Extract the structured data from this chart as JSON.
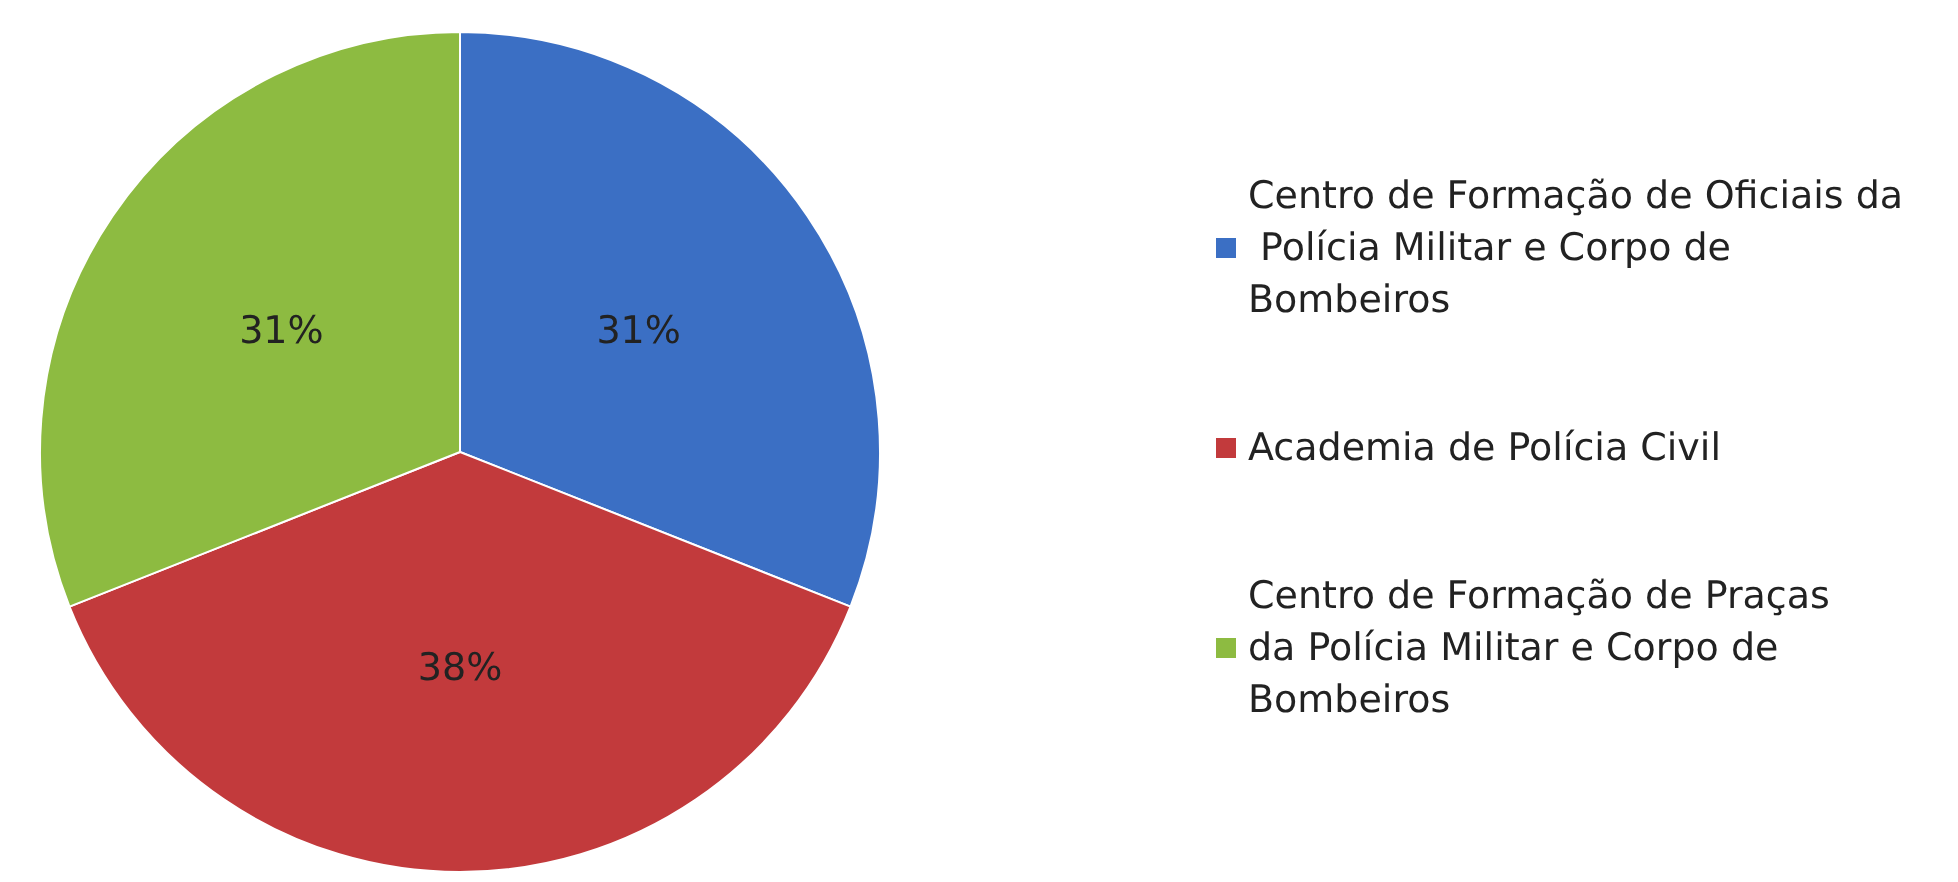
{
  "chart_data": {
    "type": "pie",
    "categories": [
      "Centro de Formação de Oficiais da Polícia Militar e Corpo de Bombeiros",
      "Academia de Polícia Civil",
      "Centro de Formação de Praças da Polícia Militar e Corpo de Bombeiros"
    ],
    "values": [
      31,
      38,
      31
    ],
    "colors": [
      "#3b6fc4",
      "#c23a3c",
      "#8dbb41"
    ],
    "value_labels": [
      "31%",
      "38%",
      "31%"
    ],
    "legend": "right"
  }
}
